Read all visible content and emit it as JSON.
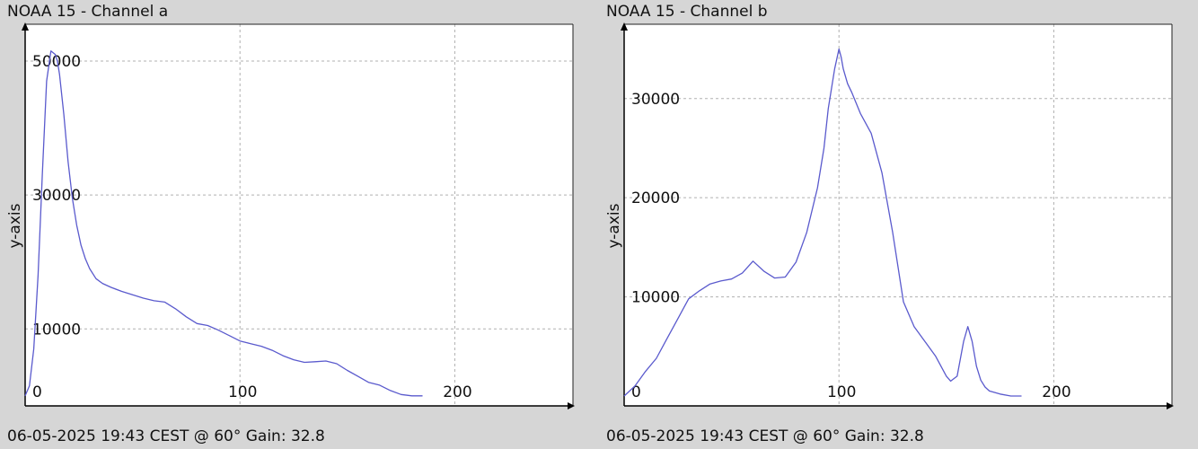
{
  "chart_data": [
    {
      "type": "line",
      "title": "NOAA 15 - Channel a",
      "footer": "06-05-2025 19:43 CEST @ 60° Gain: 32.8",
      "xlabel": "",
      "ylabel": "y-axis",
      "xlim": [
        0,
        255
      ],
      "ylim": [
        -1500,
        55500
      ],
      "xticks": [
        0,
        100,
        200
      ],
      "xtick_labels": [
        "0",
        "100",
        "200"
      ],
      "yticks": [
        50000,
        30000,
        10000
      ],
      "ytick_labels": [
        "50000",
        "30000",
        "10000"
      ],
      "grid": true,
      "line_color": "#5a5acd",
      "series": [
        {
          "x": [
            0,
            2,
            4,
            6,
            8,
            10,
            12,
            14,
            15,
            16,
            17,
            18,
            20,
            22,
            24,
            26,
            28,
            30,
            33,
            36,
            40,
            45,
            50,
            55,
            60,
            65,
            70,
            75,
            80,
            85,
            90,
            95,
            100,
            105,
            110,
            115,
            120,
            125,
            130,
            135,
            140,
            145,
            150,
            155,
            160,
            165,
            170,
            175,
            180,
            185
          ],
          "y": [
            0,
            1500,
            7000,
            18000,
            33000,
            47000,
            51500,
            51000,
            50000,
            48000,
            45000,
            42000,
            35000,
            29500,
            25500,
            22500,
            20500,
            19000,
            17500,
            16800,
            16200,
            15600,
            15100,
            14600,
            14200,
            14000,
            13000,
            11800,
            10800,
            10500,
            9800,
            9000,
            8200,
            7800,
            7400,
            6800,
            6000,
            5400,
            5000,
            5100,
            5200,
            4800,
            3800,
            2900,
            2000,
            1600,
            800,
            200,
            0,
            0
          ]
        }
      ]
    },
    {
      "type": "line",
      "title": "NOAA 15 - Channel b",
      "footer": "06-05-2025 19:43 CEST @ 60° Gain: 32.8",
      "xlabel": "",
      "ylabel": "y-axis",
      "xlim": [
        0,
        255
      ],
      "ylim": [
        -1000,
        37500
      ],
      "xticks": [
        0,
        100,
        200
      ],
      "xtick_labels": [
        "0",
        "100",
        "200"
      ],
      "yticks": [
        30000,
        20000,
        10000
      ],
      "ytick_labels": [
        "30000",
        "20000",
        "10000"
      ],
      "grid": true,
      "line_color": "#5a5acd",
      "series": [
        {
          "x": [
            0,
            5,
            10,
            15,
            20,
            25,
            30,
            35,
            40,
            45,
            50,
            55,
            60,
            65,
            70,
            75,
            80,
            85,
            90,
            93,
            95,
            98,
            100,
            101,
            102,
            104,
            106,
            110,
            115,
            120,
            125,
            130,
            135,
            140,
            145,
            150,
            152,
            155,
            158,
            160,
            162,
            164,
            166,
            168,
            170,
            175,
            180,
            185
          ],
          "y": [
            0,
            1000,
            2500,
            3800,
            5800,
            7800,
            9800,
            10600,
            11300,
            11600,
            11800,
            12400,
            13600,
            12600,
            11900,
            12000,
            13500,
            16500,
            21000,
            25000,
            29000,
            33000,
            35000,
            34200,
            33000,
            31500,
            30600,
            28500,
            26500,
            22500,
            16500,
            9500,
            7000,
            5500,
            4000,
            2000,
            1500,
            2000,
            5500,
            7000,
            5500,
            3000,
            1600,
            900,
            500,
            200,
            0,
            0
          ]
        }
      ]
    }
  ]
}
